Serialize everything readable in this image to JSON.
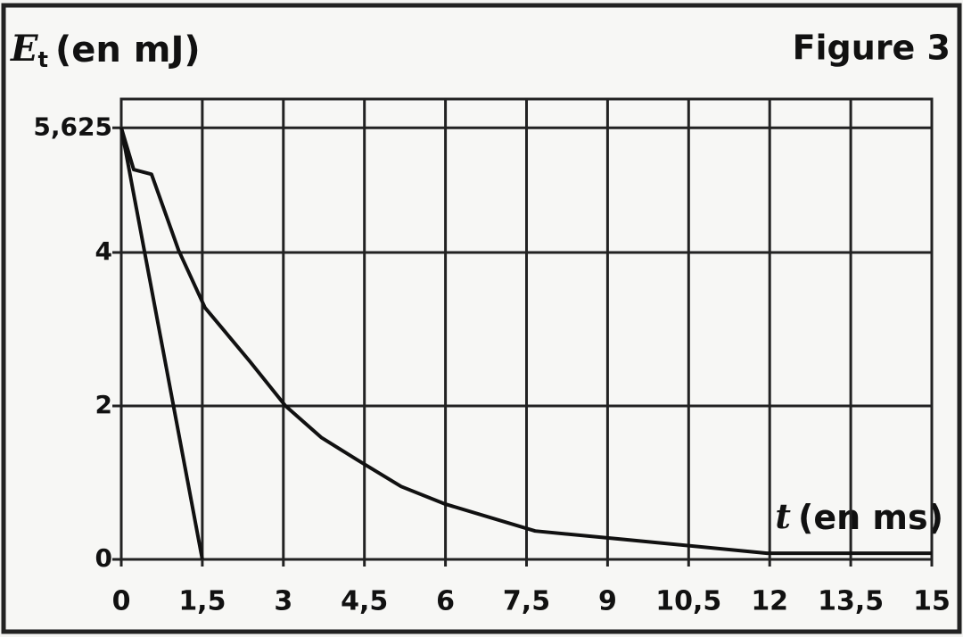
{
  "chart_data": {
    "type": "line",
    "annotation": "Figure 3",
    "y_label": {
      "symbol": "E",
      "subscript": "t",
      "unit": "(en mJ)"
    },
    "x_label": {
      "symbol": "t",
      "unit": "(en ms)"
    },
    "xlim": [
      0,
      15
    ],
    "ylim": [
      0,
      6
    ],
    "xticks": [
      0,
      {
        "value": 1.5,
        "label": "1,5"
      },
      3,
      {
        "value": 4.5,
        "label": "4,5"
      },
      6,
      {
        "value": 7.5,
        "label": "7,5"
      },
      9,
      {
        "value": 10.5,
        "label": "10,5"
      },
      12,
      {
        "value": 13.5,
        "label": "13,5"
      },
      15
    ],
    "yticks": [
      0,
      2,
      4,
      {
        "value": 5.625,
        "label": "5,625"
      }
    ],
    "grid": true,
    "color": "#111111",
    "series": [
      {
        "x": [
          0,
          0.23,
          0.56,
          1.06,
          1.55,
          2.38,
          3.04,
          3.7,
          4.36,
          5.18,
          6,
          7.66,
          9.3,
          11.95,
          15
        ],
        "values": [
          5.625,
          5.08,
          5.02,
          4.03,
          3.28,
          2.58,
          2,
          1.59,
          1.3,
          0.95,
          0.72,
          0.37,
          0.26,
          0.08,
          0.08
        ]
      },
      {
        "x": [
          0,
          1.5
        ],
        "values": [
          5.625,
          0
        ]
      }
    ]
  }
}
